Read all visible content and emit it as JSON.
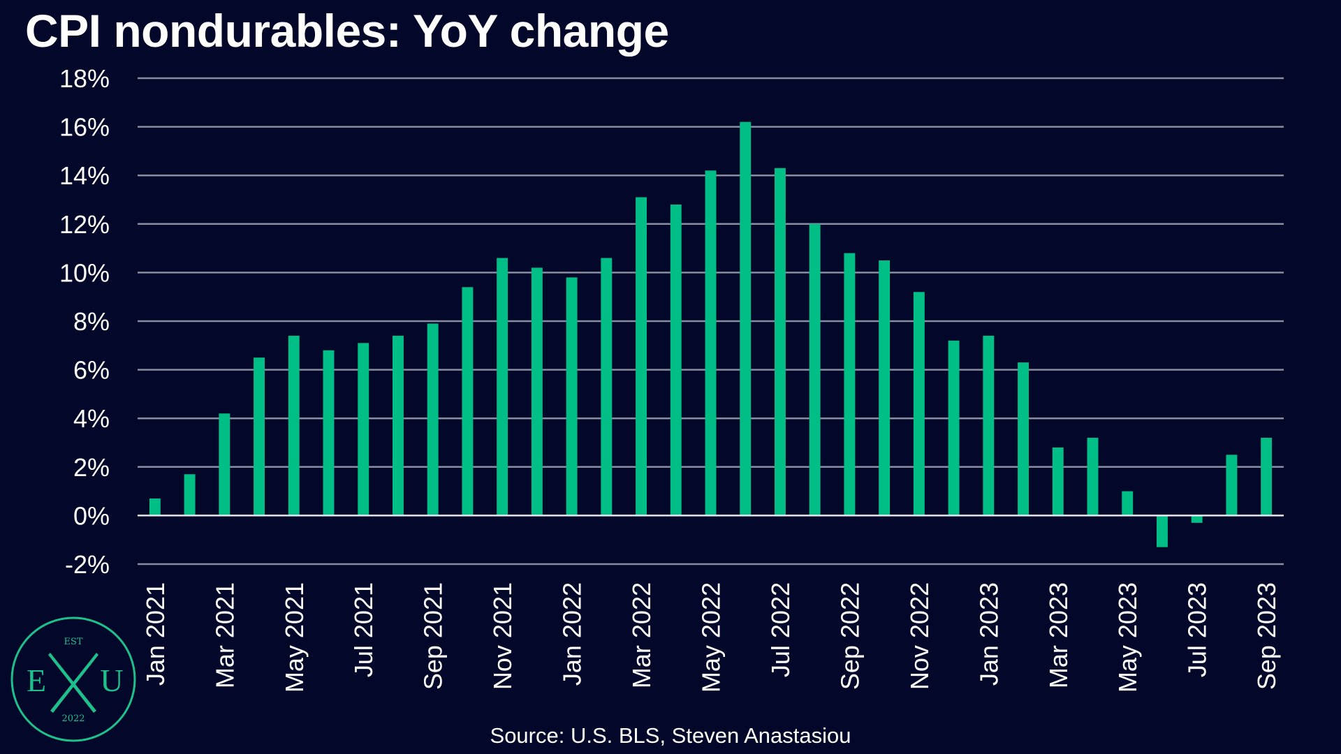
{
  "title": "CPI nondurables: YoY change",
  "source": "Source: U.S. BLS, Steven Anastasiou",
  "logo": {
    "top_text": "EST",
    "left_letter": "E",
    "right_letter": "U",
    "year": "2022",
    "color": "#1ec08b"
  },
  "colors": {
    "background": "#03072a",
    "bar": "#00bf86",
    "grid": "#8a8d9e",
    "zero_line": "#e6e6ee",
    "text": "#ffffff"
  },
  "chart_data": {
    "type": "bar",
    "title": "CPI nondurables: YoY change",
    "xlabel": "",
    "ylabel": "",
    "ylim": [
      -2,
      18
    ],
    "yticks": [
      -2,
      0,
      2,
      4,
      6,
      8,
      10,
      12,
      14,
      16,
      18
    ],
    "ytick_labels": [
      "-2%",
      "0%",
      "2%",
      "4%",
      "6%",
      "8%",
      "10%",
      "12%",
      "14%",
      "16%",
      "18%"
    ],
    "grid": true,
    "legend": "none",
    "categories": [
      "Jan 2021",
      "Feb 2021",
      "Mar 2021",
      "Apr 2021",
      "May 2021",
      "Jun 2021",
      "Jul 2021",
      "Aug 2021",
      "Sep 2021",
      "Oct 2021",
      "Nov 2021",
      "Dec 2021",
      "Jan 2022",
      "Feb 2022",
      "Mar 2022",
      "Apr 2022",
      "May 2022",
      "Jun 2022",
      "Jul 2022",
      "Aug 2022",
      "Sep 2022",
      "Oct 2022",
      "Nov 2022",
      "Dec 2022",
      "Jan 2023",
      "Feb 2023",
      "Mar 2023",
      "Apr 2023",
      "May 2023",
      "Jun 2023",
      "Jul 2023",
      "Aug 2023",
      "Sep 2023"
    ],
    "xtick_labels": [
      "Jan 2021",
      "Mar 2021",
      "May 2021",
      "Jul 2021",
      "Sep 2021",
      "Nov 2021",
      "Jan 2022",
      "Mar 2022",
      "May 2022",
      "Jul 2022",
      "Sep 2022",
      "Nov 2022",
      "Jan 2023",
      "Mar 2023",
      "May 2023",
      "Jul 2023",
      "Sep 2023"
    ],
    "values": [
      0.7,
      1.7,
      4.2,
      6.5,
      7.4,
      6.8,
      7.1,
      7.4,
      7.9,
      9.4,
      10.6,
      10.2,
      9.8,
      10.6,
      13.1,
      12.8,
      14.2,
      16.2,
      14.3,
      12.0,
      10.8,
      10.5,
      9.2,
      7.2,
      7.4,
      6.3,
      2.8,
      3.2,
      1.0,
      -1.3,
      -0.3,
      2.5,
      3.2
    ]
  }
}
